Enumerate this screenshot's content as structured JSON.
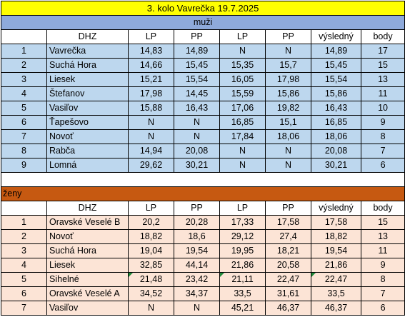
{
  "title": "3. kolo Vavrečka 19.7.2025",
  "columns": [
    "",
    "DHZ",
    "LP",
    "PP",
    "LP",
    "PP",
    "výsledný",
    "body"
  ],
  "men": {
    "label": "muži",
    "rows": [
      [
        "1",
        "Vavrečka",
        "14,83",
        "14,89",
        "N",
        "N",
        "14,89",
        "17"
      ],
      [
        "2",
        "Suchá Hora",
        "14,66",
        "15,45",
        "15,35",
        "15,7",
        "15,45",
        "15"
      ],
      [
        "3",
        "Liesek",
        "15,21",
        "15,54",
        "16,05",
        "17,98",
        "15,54",
        "13"
      ],
      [
        "4",
        "Štefanov",
        "17,98",
        "14,45",
        "15,59",
        "15,86",
        "15,86",
        "11"
      ],
      [
        "5",
        "Vasiľov",
        "15,88",
        "16,43",
        "17,06",
        "19,82",
        "16,43",
        "10"
      ],
      [
        "6",
        "Ťapešovo",
        "N",
        "N",
        "16,85",
        "15,1",
        "16,85",
        "9"
      ],
      [
        "7",
        "Novoť",
        "N",
        "N",
        "17,84",
        "18,06",
        "18,06",
        "8"
      ],
      [
        "8",
        "Rabča",
        "14,94",
        "20,08",
        "N",
        "N",
        "20,08",
        "7"
      ],
      [
        "9",
        "Lomná",
        "29,62",
        "30,21",
        "N",
        "N",
        "30,21",
        "6"
      ]
    ]
  },
  "women": {
    "label": "ženy",
    "rows": [
      [
        "1",
        "Oravské Veselé B",
        "20,2",
        "20,28",
        "17,33",
        "17,58",
        "17,58",
        "15"
      ],
      [
        "2",
        "Novoť",
        "18,82",
        "18,6",
        "29,12",
        "27,4",
        "18,82",
        "13"
      ],
      [
        "3",
        "Suchá Hora",
        "19,04",
        "19,54",
        "19,95",
        "18,21",
        "19,54",
        "11"
      ],
      [
        "4",
        "Liesek",
        "32,85",
        "44,14",
        "21,86",
        "20,58",
        "21,86",
        "9"
      ],
      [
        "5",
        "Sihelné",
        "21,48",
        "23,42",
        "21,11",
        "22,47",
        "22,47",
        "8"
      ],
      [
        "6",
        "Oravské Veselé A",
        "34,52",
        "34,37",
        "33,5",
        "31,61",
        "33,5",
        "7"
      ],
      [
        "7",
        "Vasiľov",
        "N",
        "N",
        "45,21",
        "46,37",
        "46,37",
        "6"
      ]
    ]
  }
}
